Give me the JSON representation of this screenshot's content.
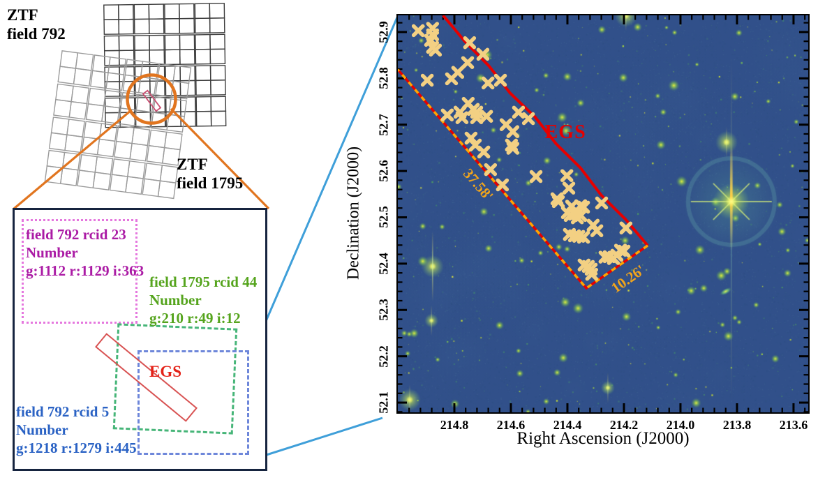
{
  "overview": {
    "field792": {
      "line1": "ZTF",
      "line2": "field 792",
      "color": "#1a1a1a"
    },
    "field1795": {
      "line1": "ZTF",
      "line2": "field 1795",
      "color": "#8f8f8f"
    },
    "highlight_circle_color": "#e1751f"
  },
  "detail_box": {
    "rcid23": {
      "title": "field 792 rcid 23",
      "subtitle": "Number",
      "counts": "g:1112 r:1129 i:363",
      "text_color": "#ab1ba5",
      "border_color": "#e577de"
    },
    "rcid44": {
      "title": "field 1795 rcid 44",
      "subtitle": "Number",
      "counts": "g:210 r:49 i:12",
      "text_color": "#55a41d",
      "border_color": "#46b578"
    },
    "rcid5": {
      "title": "field 792 rcid 5",
      "subtitle": "Number",
      "counts": "g:1218 r:1279 i:445",
      "text_color": "#2a62c4",
      "border_color": "#6e87da"
    },
    "egs_label": "EGS",
    "egs_color": "#e42218",
    "strip_color": "#d85252",
    "box_border_color": "#16243f",
    "connector_color": "#3f9fd9"
  },
  "chart_data": {
    "type": "scatter",
    "xlabel": "Right Ascension (J2000)",
    "ylabel": "Declination (J2000)",
    "xlim": [
      215.0,
      213.548
    ],
    "ylim": [
      52.079,
      52.936
    ],
    "x_ticks": [
      214.8,
      214.6,
      214.4,
      214.2,
      214.0,
      213.8,
      213.6
    ],
    "y_ticks": [
      52.9,
      52.8,
      52.7,
      52.6,
      52.5,
      52.4,
      52.3,
      52.2,
      52.1
    ],
    "x_minor_step": 0.04,
    "y_minor_step": 0.02,
    "background_color": "#31508a",
    "marker_color": "#f3d083",
    "marker_symbol": "x",
    "egs_label": {
      "text": "EGS",
      "ra": 214.407,
      "dec": 52.683,
      "color": "#e60000"
    },
    "width_label": {
      "text": "37.58'",
      "ra": 214.716,
      "dec": 52.57,
      "angle": 49,
      "color": "#f2a51b"
    },
    "height_label": {
      "text": "10.26'",
      "ra": 214.185,
      "dec": 52.367,
      "angle": -35,
      "color": "#f2a51b"
    },
    "strip": {
      "solid_edge": [
        [
          214.84,
          52.936
        ],
        [
          214.116,
          52.439
        ]
      ],
      "short_edge": [
        [
          214.116,
          52.439
        ],
        [
          214.333,
          52.347
        ]
      ],
      "dashed_edge": [
        [
          214.333,
          52.347
        ],
        [
          215.0,
          52.819
        ]
      ],
      "solid_color": "#e60000",
      "dash_color": "#ffa500"
    },
    "markers": [
      [
        214.928,
        52.903
      ],
      [
        214.877,
        52.908
      ],
      [
        214.877,
        52.894
      ],
      [
        214.884,
        52.882
      ],
      [
        214.877,
        52.867
      ],
      [
        214.867,
        52.861
      ],
      [
        214.746,
        52.877
      ],
      [
        214.699,
        52.852
      ],
      [
        214.753,
        52.834
      ],
      [
        214.788,
        52.813
      ],
      [
        214.81,
        52.799
      ],
      [
        214.896,
        52.796
      ],
      [
        214.681,
        52.79
      ],
      [
        214.637,
        52.796
      ],
      [
        214.751,
        52.746
      ],
      [
        214.733,
        52.733
      ],
      [
        214.721,
        52.727
      ],
      [
        214.825,
        52.721
      ],
      [
        214.78,
        52.727
      ],
      [
        214.773,
        52.715
      ],
      [
        214.721,
        52.715
      ],
      [
        214.686,
        52.718
      ],
      [
        214.617,
        52.7
      ],
      [
        214.573,
        52.727
      ],
      [
        214.538,
        52.713
      ],
      [
        214.593,
        52.685
      ],
      [
        214.598,
        52.656
      ],
      [
        214.593,
        52.649
      ],
      [
        214.741,
        52.671
      ],
      [
        214.726,
        52.656
      ],
      [
        214.696,
        52.641
      ],
      [
        214.672,
        52.603
      ],
      [
        214.511,
        52.588
      ],
      [
        214.402,
        52.59
      ],
      [
        214.395,
        52.563
      ],
      [
        214.437,
        52.54
      ],
      [
        214.63,
        52.57
      ],
      [
        214.432,
        52.534
      ],
      [
        214.385,
        52.524
      ],
      [
        214.353,
        52.525
      ],
      [
        214.343,
        52.522
      ],
      [
        214.4,
        52.51
      ],
      [
        214.39,
        52.504
      ],
      [
        214.375,
        52.507
      ],
      [
        214.365,
        52.499
      ],
      [
        214.353,
        52.504
      ],
      [
        214.279,
        52.531
      ],
      [
        214.309,
        52.483
      ],
      [
        214.296,
        52.471
      ],
      [
        214.393,
        52.463
      ],
      [
        214.375,
        52.46
      ],
      [
        214.36,
        52.459
      ],
      [
        214.343,
        52.457
      ],
      [
        214.193,
        52.477
      ],
      [
        214.212,
        52.429
      ],
      [
        214.2,
        52.427
      ],
      [
        214.267,
        52.414
      ],
      [
        214.252,
        52.415
      ],
      [
        214.237,
        52.411
      ],
      [
        214.225,
        52.418
      ],
      [
        214.341,
        52.397
      ],
      [
        214.326,
        52.394
      ],
      [
        214.316,
        52.388
      ],
      [
        214.314,
        52.377
      ]
    ],
    "bright_stars": [
      {
        "ra": 213.82,
        "dec": 52.534,
        "type": "saturated"
      },
      {
        "ra": 213.837,
        "dec": 52.662,
        "type": "bright"
      },
      {
        "ra": 214.193,
        "dec": 52.935,
        "type": "bright"
      },
      {
        "ra": 214.877,
        "dec": 52.394,
        "type": "spiked"
      },
      {
        "ra": 214.881,
        "dec": 52.277,
        "type": "small"
      },
      {
        "ra": 214.958,
        "dec": 52.106,
        "type": "bright"
      },
      {
        "ra": 214.257,
        "dec": 52.132,
        "type": "small"
      }
    ],
    "galaxy": {
      "ra": 213.84,
      "dec": 52.34
    }
  }
}
